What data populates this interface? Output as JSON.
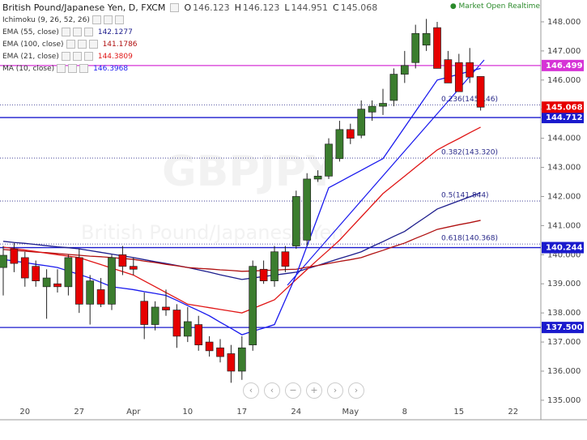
{
  "chart_data": {
    "type": "candlestick",
    "symbol": "British Pound/Japanese Yen, D, FXCM",
    "ohlc_letters": [
      "O",
      "H",
      "L",
      "C"
    ],
    "status": "Market Open",
    "mode": "Realtime",
    "watermark": [
      "GBPJPY",
      "British Pound/Japanese Yen"
    ],
    "indicator": "Ichimoku (9, 26, 52, 26)",
    "up_color": "#3b7d2e",
    "down_color": "#e60000",
    "categories": [
      null,
      null,
      "20",
      null,
      null,
      null,
      null,
      "27",
      null,
      null,
      null,
      null,
      "Apr",
      null,
      null,
      null,
      null,
      "10",
      null,
      null,
      null,
      null,
      "17",
      null,
      null,
      null,
      null,
      "24",
      null,
      null,
      null,
      null,
      "May",
      null,
      null,
      null,
      null,
      "8",
      null,
      null,
      null,
      null,
      "15",
      null,
      null,
      null,
      null,
      "22"
    ],
    "open": [
      139.56,
      140.2,
      139.9,
      139.6,
      138.9,
      139.0,
      138.9,
      139.9,
      138.3,
      138.8,
      138.3,
      140.0,
      139.6,
      138.4,
      137.6,
      138.2,
      138.1,
      137.2,
      137.6,
      137.0,
      136.8,
      136.6,
      136.0,
      136.9,
      139.5,
      139.1,
      140.1,
      140.3,
      140.5,
      142.6,
      142.7,
      143.3,
      144.3,
      144.1,
      144.9,
      145.1,
      145.3,
      146.2,
      146.6,
      147.2,
      147.8,
      146.7,
      146.6,
      146.6,
      146.123,
      null,
      null,
      null
    ],
    "high": [
      140.3,
      140.4,
      140.1,
      139.8,
      139.5,
      139.5,
      140.0,
      140.2,
      139.3,
      139.2,
      140.0,
      140.3,
      139.9,
      138.7,
      138.4,
      138.8,
      138.3,
      138.2,
      137.9,
      137.2,
      137.1,
      136.9,
      137.2,
      139.8,
      139.8,
      140.3,
      140.3,
      142.2,
      142.8,
      142.9,
      144.0,
      144.6,
      144.5,
      145.3,
      145.3,
      145.7,
      146.4,
      147.0,
      147.9,
      148.1,
      148.0,
      147.0,
      146.9,
      147.1,
      146.123,
      null,
      null,
      null
    ],
    "low": [
      138.6,
      139.4,
      138.9,
      138.9,
      137.8,
      138.7,
      138.6,
      138.0,
      137.6,
      138.2,
      138.1,
      139.3,
      139.3,
      137.1,
      137.4,
      137.9,
      136.8,
      137.0,
      136.7,
      136.5,
      136.3,
      135.6,
      135.7,
      136.7,
      139.0,
      138.9,
      139.4,
      140.2,
      140.3,
      142.5,
      142.6,
      143.2,
      143.8,
      144.0,
      144.6,
      144.8,
      145.1,
      145.9,
      146.4,
      147.0,
      146.4,
      145.9,
      145.6,
      145.9,
      144.951,
      null,
      null,
      null
    ],
    "close": [
      139.98,
      139.7,
      139.2,
      139.1,
      139.2,
      138.9,
      139.9,
      138.3,
      139.1,
      138.3,
      139.9,
      139.6,
      139.5,
      137.6,
      138.2,
      138.1,
      137.2,
      137.7,
      136.9,
      136.7,
      136.5,
      136.0,
      136.8,
      139.6,
      139.1,
      140.1,
      139.6,
      142.0,
      142.6,
      142.7,
      143.8,
      144.3,
      144.0,
      145.0,
      145.1,
      145.2,
      146.2,
      146.5,
      147.6,
      147.6,
      146.4,
      145.9,
      145.6,
      146.1,
      145.068,
      null,
      null,
      null
    ],
    "series": [
      {
        "name": "EMA (55, close)",
        "color": "#1c1c8c",
        "value": 142.1277,
        "values": [
          140.46,
          140.42,
          140.39,
          140.35,
          140.31,
          140.27,
          140.24,
          140.2,
          140.14,
          140.08,
          140.02,
          139.96,
          139.9,
          139.83,
          139.76,
          139.7,
          139.63,
          139.56,
          139.48,
          139.4,
          139.31,
          139.23,
          139.15,
          139.2,
          139.25,
          139.3,
          139.35,
          139.4,
          139.52,
          139.63,
          139.75,
          139.87,
          139.98,
          140.1,
          140.28,
          140.45,
          140.63,
          140.8,
          141.06,
          141.31,
          141.57,
          141.71,
          141.85,
          141.99,
          142.13,
          null,
          null,
          null
        ]
      },
      {
        "name": "EMA (100, close)",
        "color": "#b01010",
        "value": 141.1786,
        "values": [
          140.18,
          140.15,
          140.12,
          140.09,
          140.07,
          140.04,
          140.01,
          139.98,
          139.95,
          139.93,
          139.9,
          139.87,
          139.84,
          139.78,
          139.73,
          139.67,
          139.62,
          139.56,
          139.53,
          139.51,
          139.48,
          139.46,
          139.43,
          139.44,
          139.46,
          139.47,
          139.49,
          139.5,
          139.57,
          139.63,
          139.7,
          139.77,
          139.83,
          139.9,
          140.03,
          140.15,
          140.28,
          140.4,
          140.56,
          140.71,
          140.87,
          140.95,
          141.03,
          141.1,
          141.18,
          null,
          null,
          null
        ]
      },
      {
        "name": "EMA (21, close)",
        "color": "#e01515",
        "value": 144.3809,
        "values": [
          140.26,
          140.21,
          140.16,
          140.11,
          140.05,
          140.0,
          139.95,
          139.9,
          139.78,
          139.66,
          139.54,
          139.42,
          139.3,
          139.1,
          138.9,
          138.7,
          138.5,
          138.3,
          138.24,
          138.18,
          138.12,
          138.06,
          138.0,
          138.15,
          138.3,
          138.45,
          138.8,
          139.15,
          139.49,
          139.83,
          140.16,
          140.5,
          140.9,
          141.3,
          141.7,
          142.1,
          142.4,
          142.7,
          143.0,
          143.3,
          143.6,
          143.8,
          143.99,
          144.19,
          144.38,
          null,
          null,
          null
        ]
      },
      {
        "name": "MA (10, close)",
        "color": "#1a1aee",
        "value": 146.3968,
        "values": [
          139.84,
          139.78,
          139.73,
          139.67,
          139.62,
          139.56,
          139.44,
          139.32,
          139.2,
          139.05,
          138.9,
          138.85,
          138.8,
          138.73,
          138.67,
          138.6,
          138.43,
          138.25,
          138.08,
          137.9,
          137.68,
          137.47,
          137.25,
          137.37,
          137.48,
          137.6,
          138.45,
          139.3,
          140.3,
          141.3,
          142.3,
          142.5,
          142.7,
          142.9,
          143.1,
          143.3,
          143.84,
          144.38,
          144.92,
          145.46,
          146.0,
          146.1,
          146.2,
          146.3,
          146.4,
          null,
          null,
          null
        ]
      }
    ],
    "levels": [
      {
        "value": 146.499,
        "color": "#d633d6"
      },
      {
        "value": 144.712,
        "color": "#1a1acd"
      },
      {
        "value": 140.244,
        "color": "#1a1acd"
      },
      {
        "value": 137.5,
        "label": "137.500",
        "color": "#1a1acd"
      }
    ],
    "fib": [
      {
        "value": 145.146,
        "label": "0.236(145.146)"
      },
      {
        "value": 143.32,
        "label": "0.382(143.320)"
      },
      {
        "value": 141.844,
        "label": "0.5(141.844)"
      },
      {
        "value": 140.368,
        "label": "0.618(140.368)"
      }
    ],
    "fib_color": "#2a2a8a",
    "ylim": [
      134.33,
      148.75
    ],
    "yticks": [
      {
        "value": 135,
        "label": "135.000"
      },
      {
        "value": 136,
        "label": "136.000"
      },
      {
        "value": 137,
        "label": "137.000"
      },
      {
        "value": 138,
        "label": "138.000"
      },
      {
        "value": 139,
        "label": "139.000"
      },
      {
        "value": 140,
        "label": "140.000"
      },
      {
        "value": 141,
        "label": "141.000"
      },
      {
        "value": 142,
        "label": "142.000"
      },
      {
        "value": 143,
        "label": "143.000"
      },
      {
        "value": 144,
        "label": "144.000"
      },
      {
        "value": 145,
        "label": "145.000"
      },
      {
        "value": 146,
        "label": "146.000"
      },
      {
        "value": 147,
        "label": "147.000"
      },
      {
        "value": 148,
        "label": "148.000"
      }
    ]
  }
}
